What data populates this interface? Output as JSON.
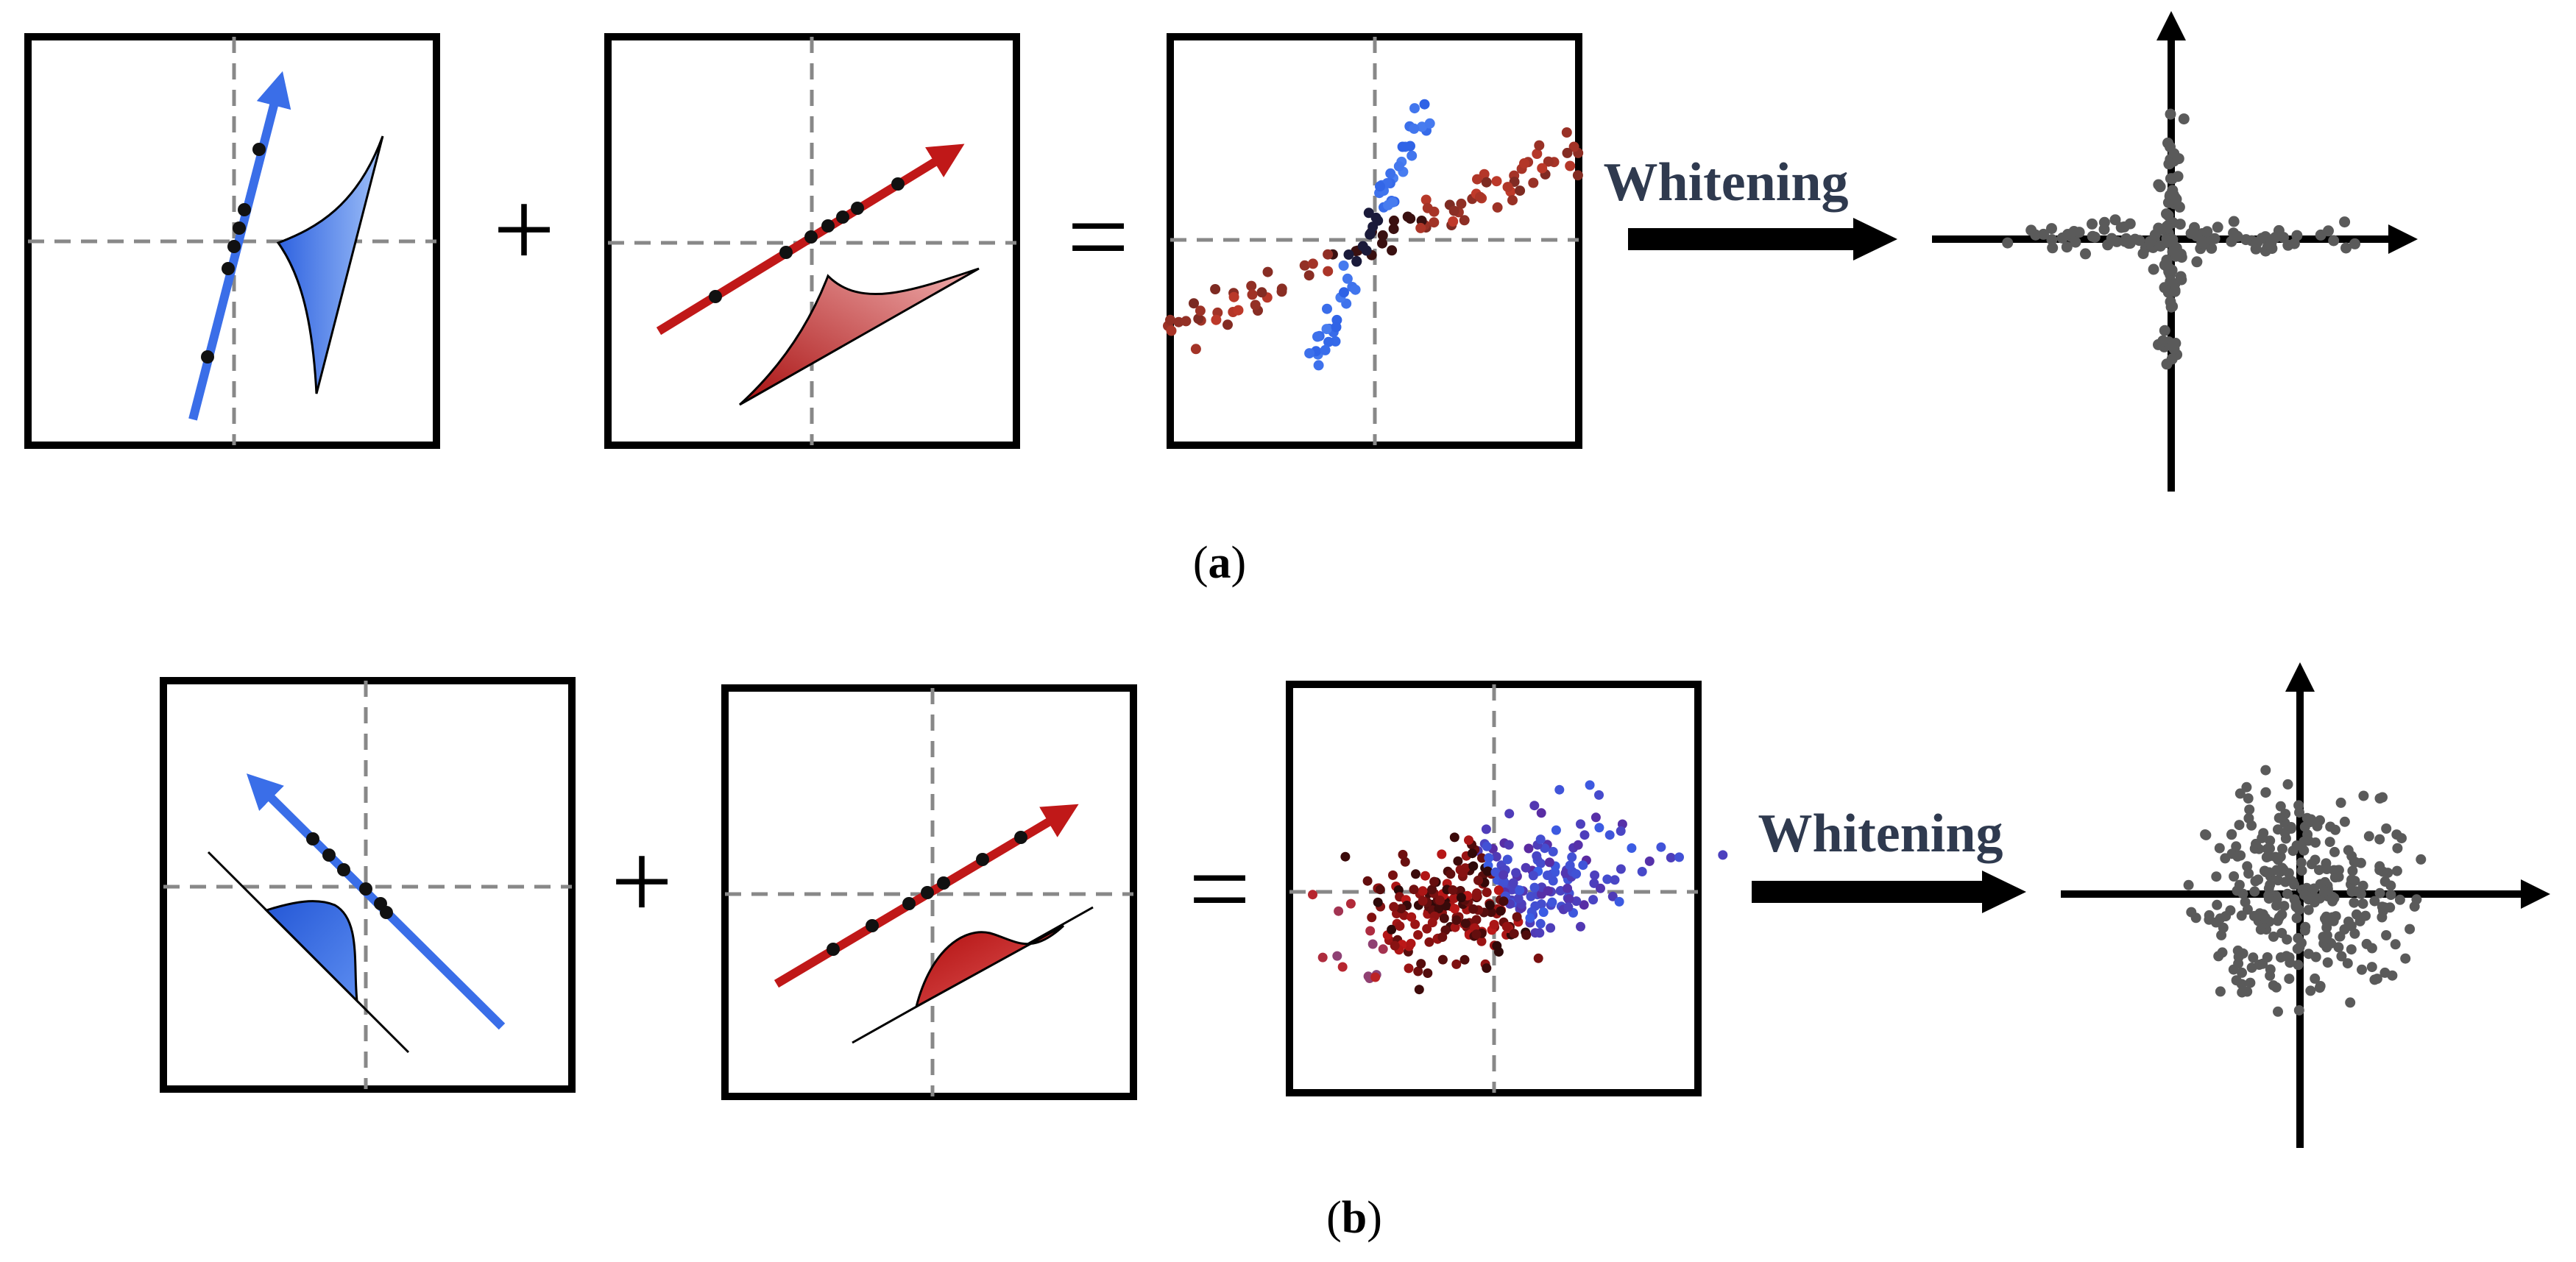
{
  "panels": [
    {
      "caption_open": "(",
      "caption_letter": "a",
      "caption_close": ")",
      "operator_plus": "+",
      "operator_equals": "=",
      "arrow_label": "Whitening"
    },
    {
      "caption_open": "(",
      "caption_letter": "b",
      "caption_close": ")",
      "operator_plus": "+",
      "operator_equals": "=",
      "arrow_label": "Whitening"
    }
  ],
  "colors": {
    "blue": "#3a6ee8",
    "red": "#c01818",
    "grey_points": "#5a5a5a",
    "label": "#2f3a4f",
    "frame": "#000000",
    "dashed": "#888888"
  }
}
